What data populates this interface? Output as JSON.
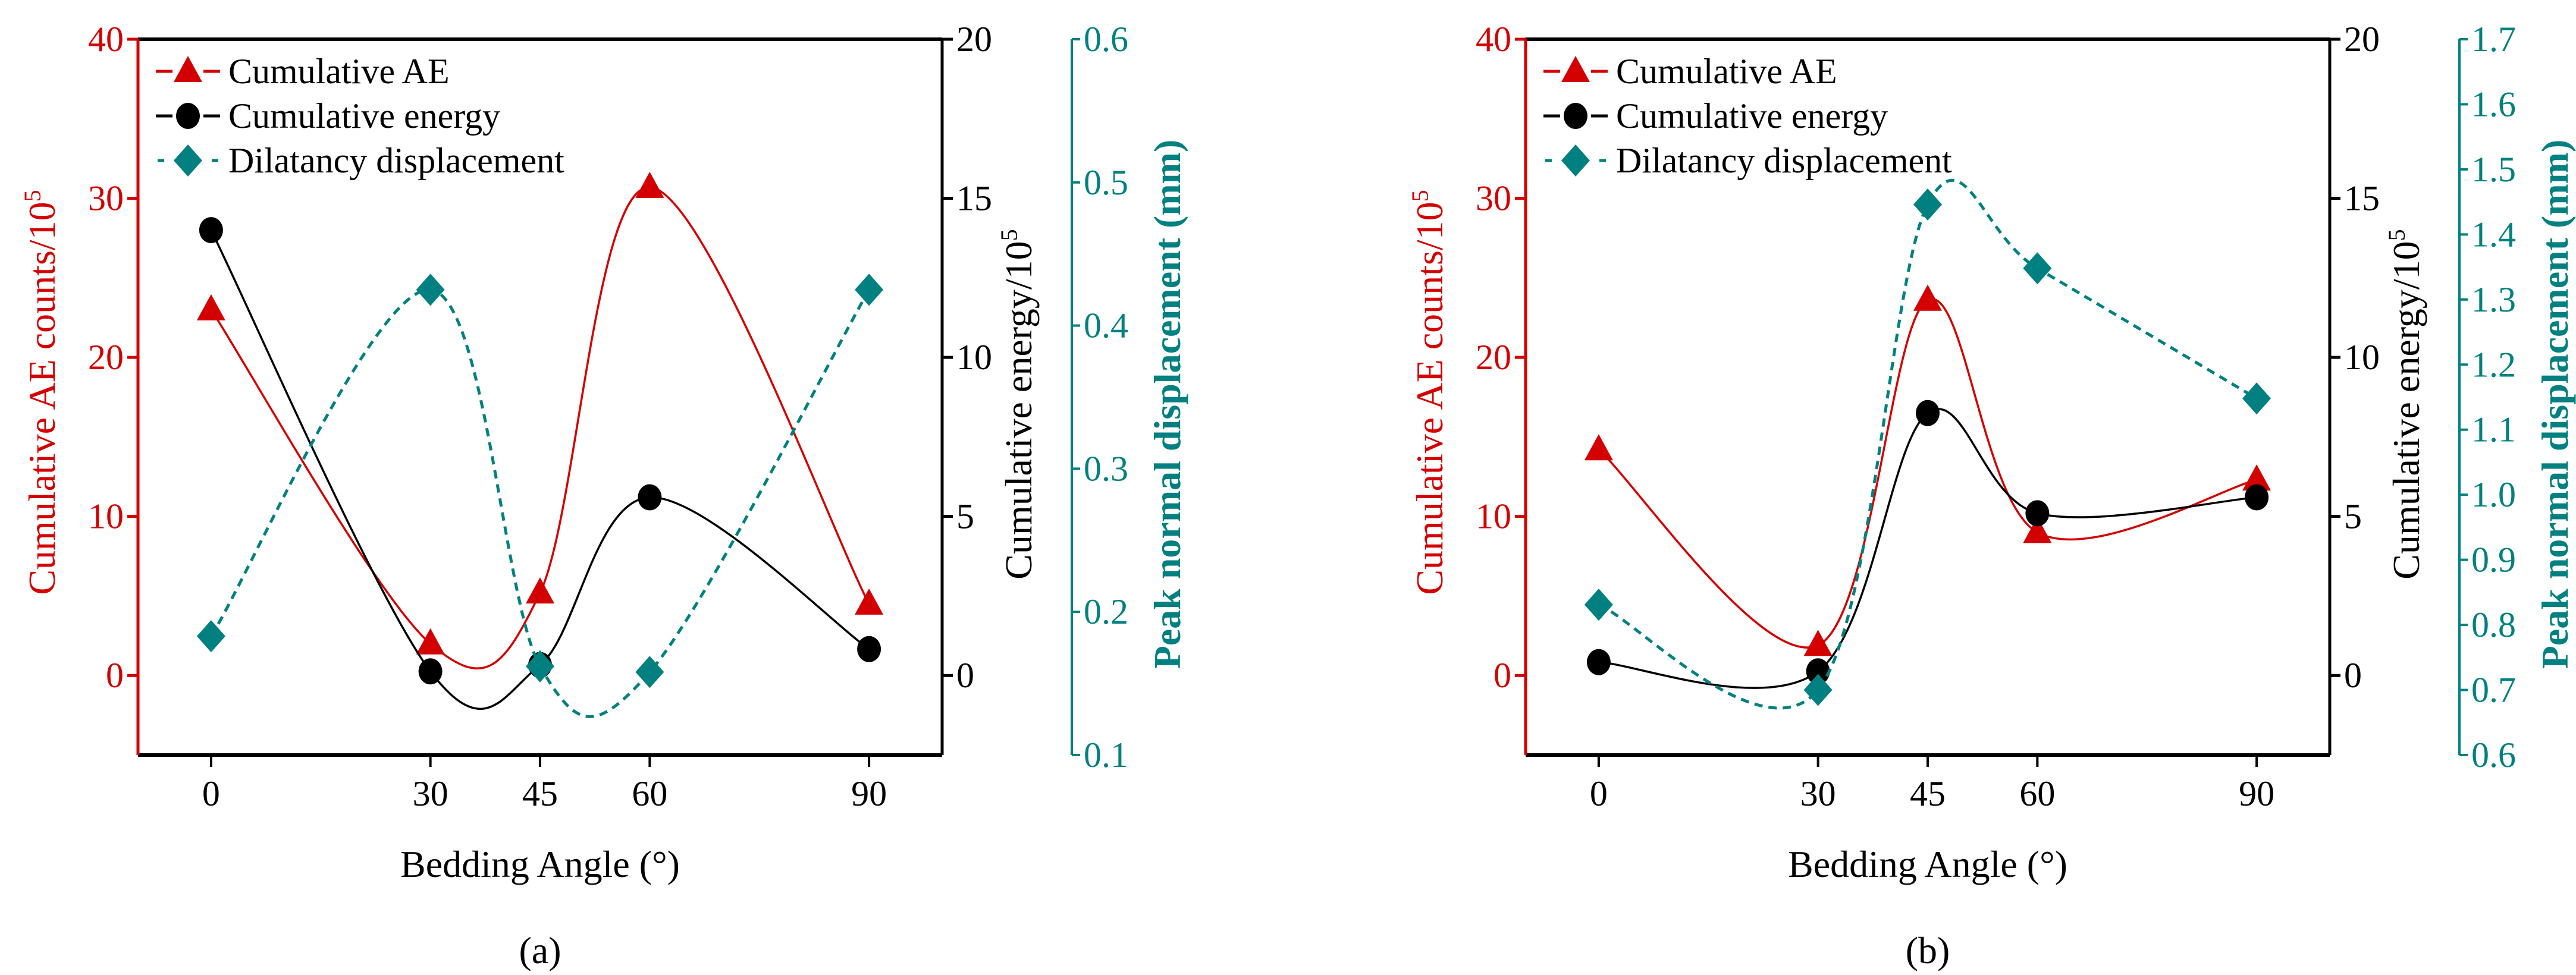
{
  "colors": {
    "ae": "#d40000",
    "energy": "#000000",
    "disp": "#008080"
  },
  "legend": [
    "Cumulative AE",
    "Cumulative energy",
    "Dilatancy displacement"
  ],
  "chart_data": [
    {
      "type": "line",
      "panel_label": "(a)",
      "panel_letter": "a",
      "xlabel": "Bedding Angle (°)",
      "x": [
        0,
        30,
        45,
        60,
        90
      ],
      "xticks": [
        "0",
        "30",
        "45",
        "60",
        "90"
      ],
      "xlim": [
        -10,
        100
      ],
      "y1label": "Cumulative AE counts/10",
      "y1label_sup": "5",
      "y2label": "Cumulative energy/10",
      "y2label_sup": "5",
      "y3label": "Peak normal displacement (mm)",
      "y1lim": [
        -5,
        40
      ],
      "y1ticks": [
        "0",
        "10",
        "20",
        "30",
        "40"
      ],
      "y1tickvals": [
        0,
        10,
        20,
        30,
        40
      ],
      "y2lim": [
        -2.5,
        20
      ],
      "y2ticks": [
        "0",
        "5",
        "10",
        "15",
        "20"
      ],
      "y2tickvals": [
        0,
        5,
        10,
        15,
        20
      ],
      "y3lim": [
        0.1,
        0.6
      ],
      "y3ticks": [
        "0.1",
        "0.2",
        "0.3",
        "0.4",
        "0.5",
        "0.6"
      ],
      "y3tickvals": [
        0.1,
        0.2,
        0.3,
        0.4,
        0.5,
        0.6
      ],
      "series": [
        {
          "name": "Cumulative AE",
          "axis": "y1",
          "values": [
            23.0,
            2.0,
            5.2,
            30.7,
            4.5
          ]
        },
        {
          "name": "Cumulative energy",
          "axis": "y2",
          "values": [
            14.0,
            0.13,
            0.33,
            5.6,
            0.83
          ]
        },
        {
          "name": "Dilatancy displacement",
          "axis": "y3",
          "values": [
            0.183,
            0.425,
            0.162,
            0.158,
            0.425
          ]
        }
      ],
      "legend_position": "top-left"
    },
    {
      "type": "line",
      "panel_label": "(b)",
      "panel_letter": "b",
      "xlabel": "Bedding Angle (°)",
      "x": [
        0,
        30,
        45,
        60,
        90
      ],
      "xticks": [
        "0",
        "30",
        "45",
        "60",
        "90"
      ],
      "xlim": [
        -10,
        100
      ],
      "y1label": "Cumulative AE counts/10",
      "y1label_sup": "5",
      "y2label": "Cumulative energy/10",
      "y2label_sup": "5",
      "y3label": "Peak normal displacement (mm)",
      "y1lim": [
        -5,
        40
      ],
      "y1ticks": [
        "0",
        "10",
        "20",
        "30",
        "40"
      ],
      "y1tickvals": [
        0,
        10,
        20,
        30,
        40
      ],
      "y2lim": [
        -2.5,
        20
      ],
      "y2ticks": [
        "0",
        "5",
        "10",
        "15",
        "20"
      ],
      "y2tickvals": [
        0,
        5,
        10,
        15,
        20
      ],
      "y3lim": [
        0.6,
        1.7
      ],
      "y3ticks": [
        "0.6",
        "0.7",
        "0.8",
        "0.9",
        "1.0",
        "1.1",
        "1.2",
        "1.3",
        "1.4",
        "1.5",
        "1.6",
        "1.7"
      ],
      "y3tickvals": [
        0.6,
        0.7,
        0.8,
        0.9,
        1.0,
        1.1,
        1.2,
        1.3,
        1.4,
        1.5,
        1.6,
        1.7
      ],
      "series": [
        {
          "name": "Cumulative AE",
          "axis": "y1",
          "values": [
            14.2,
            1.9,
            23.6,
            9.0,
            12.3
          ]
        },
        {
          "name": "Cumulative energy",
          "axis": "y2",
          "values": [
            0.42,
            0.13,
            8.25,
            5.1,
            5.6
          ]
        },
        {
          "name": "Dilatancy displacement",
          "axis": "y3",
          "values": [
            0.831,
            0.7,
            1.446,
            1.348,
            1.148
          ]
        }
      ],
      "legend_position": "top-left"
    }
  ]
}
